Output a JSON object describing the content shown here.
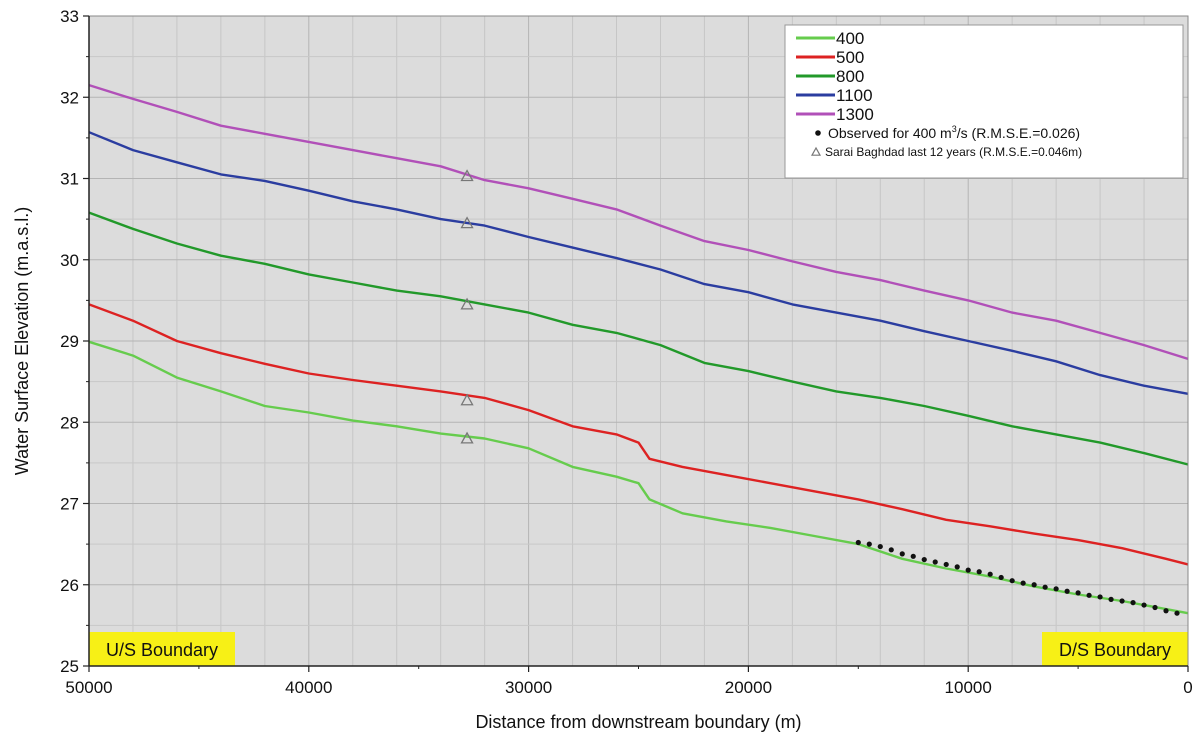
{
  "chart_data": {
    "type": "line",
    "title": "",
    "xlabel": "Distance from downstream boundary (m)",
    "ylabel": "Water Surface Elevation (m.a.s.l.)",
    "xlim": [
      50000,
      0
    ],
    "ylim": [
      25,
      33
    ],
    "x_ticks": [
      "50000",
      "40000",
      "30000",
      "20000",
      "10000",
      "0"
    ],
    "y_ticks": [
      "25",
      "26",
      "27",
      "28",
      "29",
      "30",
      "31",
      "32",
      "33"
    ],
    "grid": true,
    "legend_position": "top-right",
    "series": [
      {
        "name": "400",
        "color": "#66cc4d",
        "points": [
          [
            50000,
            28.99
          ],
          [
            48000,
            28.82
          ],
          [
            46000,
            28.55
          ],
          [
            44000,
            28.38
          ],
          [
            42000,
            28.2
          ],
          [
            40000,
            28.12
          ],
          [
            38000,
            28.02
          ],
          [
            36000,
            27.95
          ],
          [
            34000,
            27.86
          ],
          [
            32000,
            27.8
          ],
          [
            30000,
            27.68
          ],
          [
            28000,
            27.45
          ],
          [
            26000,
            27.33
          ],
          [
            25000,
            27.25
          ],
          [
            24500,
            27.05
          ],
          [
            23000,
            26.88
          ],
          [
            21000,
            26.78
          ],
          [
            19000,
            26.7
          ],
          [
            17000,
            26.6
          ],
          [
            15000,
            26.5
          ],
          [
            13000,
            26.32
          ],
          [
            11000,
            26.2
          ],
          [
            9000,
            26.1
          ],
          [
            7000,
            25.98
          ],
          [
            5000,
            25.88
          ],
          [
            3000,
            25.8
          ],
          [
            1000,
            25.7
          ],
          [
            0,
            25.65
          ]
        ]
      },
      {
        "name": "500",
        "color": "#dd2222",
        "points": [
          [
            50000,
            29.45
          ],
          [
            48000,
            29.25
          ],
          [
            46000,
            29.0
          ],
          [
            44000,
            28.85
          ],
          [
            42000,
            28.72
          ],
          [
            40000,
            28.6
          ],
          [
            38000,
            28.52
          ],
          [
            36000,
            28.45
          ],
          [
            34000,
            28.38
          ],
          [
            32000,
            28.3
          ],
          [
            30000,
            28.15
          ],
          [
            28000,
            27.95
          ],
          [
            26000,
            27.85
          ],
          [
            25000,
            27.75
          ],
          [
            24500,
            27.55
          ],
          [
            23000,
            27.45
          ],
          [
            21000,
            27.35
          ],
          [
            19000,
            27.25
          ],
          [
            17000,
            27.15
          ],
          [
            15000,
            27.05
          ],
          [
            13000,
            26.93
          ],
          [
            11000,
            26.8
          ],
          [
            9000,
            26.72
          ],
          [
            7000,
            26.63
          ],
          [
            5000,
            26.55
          ],
          [
            3000,
            26.45
          ],
          [
            1000,
            26.32
          ],
          [
            0,
            26.25
          ]
        ]
      },
      {
        "name": "800",
        "color": "#22992a",
        "points": [
          [
            50000,
            30.58
          ],
          [
            48000,
            30.38
          ],
          [
            46000,
            30.2
          ],
          [
            44000,
            30.05
          ],
          [
            42000,
            29.95
          ],
          [
            40000,
            29.82
          ],
          [
            38000,
            29.72
          ],
          [
            36000,
            29.62
          ],
          [
            34000,
            29.55
          ],
          [
            32000,
            29.45
          ],
          [
            30000,
            29.35
          ],
          [
            28000,
            29.2
          ],
          [
            26000,
            29.1
          ],
          [
            24000,
            28.95
          ],
          [
            22000,
            28.73
          ],
          [
            20000,
            28.63
          ],
          [
            18000,
            28.5
          ],
          [
            16000,
            28.38
          ],
          [
            14000,
            28.3
          ],
          [
            12000,
            28.2
          ],
          [
            10000,
            28.08
          ],
          [
            8000,
            27.95
          ],
          [
            6000,
            27.85
          ],
          [
            4000,
            27.75
          ],
          [
            2000,
            27.62
          ],
          [
            0,
            27.48
          ]
        ]
      },
      {
        "name": "1100",
        "color": "#2b3da0",
        "points": [
          [
            50000,
            31.57
          ],
          [
            48000,
            31.35
          ],
          [
            46000,
            31.2
          ],
          [
            44000,
            31.05
          ],
          [
            42000,
            30.97
          ],
          [
            40000,
            30.85
          ],
          [
            38000,
            30.72
          ],
          [
            36000,
            30.62
          ],
          [
            34000,
            30.5
          ],
          [
            32000,
            30.42
          ],
          [
            30000,
            30.28
          ],
          [
            28000,
            30.15
          ],
          [
            26000,
            30.02
          ],
          [
            24000,
            29.88
          ],
          [
            22000,
            29.7
          ],
          [
            20000,
            29.6
          ],
          [
            18000,
            29.45
          ],
          [
            16000,
            29.35
          ],
          [
            14000,
            29.25
          ],
          [
            12000,
            29.12
          ],
          [
            10000,
            29.0
          ],
          [
            8000,
            28.88
          ],
          [
            6000,
            28.75
          ],
          [
            4000,
            28.58
          ],
          [
            2000,
            28.45
          ],
          [
            0,
            28.35
          ]
        ]
      },
      {
        "name": "1300",
        "color": "#b150b8",
        "points": [
          [
            50000,
            32.15
          ],
          [
            48000,
            31.98
          ],
          [
            46000,
            31.82
          ],
          [
            44000,
            31.65
          ],
          [
            42000,
            31.55
          ],
          [
            40000,
            31.45
          ],
          [
            38000,
            31.35
          ],
          [
            36000,
            31.25
          ],
          [
            34000,
            31.15
          ],
          [
            32000,
            30.98
          ],
          [
            30000,
            30.88
          ],
          [
            28000,
            30.75
          ],
          [
            26000,
            30.62
          ],
          [
            24000,
            30.42
          ],
          [
            22000,
            30.23
          ],
          [
            20000,
            30.12
          ],
          [
            18000,
            29.98
          ],
          [
            16000,
            29.85
          ],
          [
            14000,
            29.75
          ],
          [
            12000,
            29.62
          ],
          [
            10000,
            29.5
          ],
          [
            8000,
            29.35
          ],
          [
            6000,
            29.25
          ],
          [
            4000,
            29.1
          ],
          [
            2000,
            28.95
          ],
          [
            0,
            28.78
          ]
        ]
      }
    ],
    "observed": {
      "name": "Observed for 400 m³/s (R.M.S.E.=0.026)",
      "color": "#111111",
      "points": [
        [
          15000,
          26.52
        ],
        [
          14500,
          26.5
        ],
        [
          14000,
          26.47
        ],
        [
          13500,
          26.43
        ],
        [
          13000,
          26.38
        ],
        [
          12500,
          26.35
        ],
        [
          12000,
          26.31
        ],
        [
          11500,
          26.28
        ],
        [
          11000,
          26.25
        ],
        [
          10500,
          26.22
        ],
        [
          10000,
          26.18
        ],
        [
          9500,
          26.16
        ],
        [
          9000,
          26.13
        ],
        [
          8500,
          26.09
        ],
        [
          8000,
          26.05
        ],
        [
          7500,
          26.02
        ],
        [
          7000,
          26.0
        ],
        [
          6500,
          25.97
        ],
        [
          6000,
          25.95
        ],
        [
          5500,
          25.92
        ],
        [
          5000,
          25.9
        ],
        [
          4500,
          25.87
        ],
        [
          4000,
          25.85
        ],
        [
          3500,
          25.82
        ],
        [
          3000,
          25.8
        ],
        [
          2500,
          25.78
        ],
        [
          2000,
          25.75
        ],
        [
          1500,
          25.72
        ],
        [
          1000,
          25.68
        ],
        [
          500,
          25.65
        ]
      ]
    },
    "sarai": {
      "name": "Sarai Baghdad last 12 years (R.M.S.E.=0.046m)",
      "color": "#777777",
      "points": [
        [
          32800,
          31.03
        ],
        [
          32800,
          30.45
        ],
        [
          32800,
          29.45
        ],
        [
          32800,
          28.27
        ],
        [
          32800,
          27.8
        ]
      ]
    },
    "legend": {
      "obs_prefix": "Observed for 400 m",
      "obs_sup": "3",
      "obs_suffix": "/s (R.M.S.E.=0.026)"
    },
    "annotations": [
      {
        "text": "U/S Boundary",
        "anchor": "bottom-left"
      },
      {
        "text": "D/S Boundary",
        "anchor": "bottom-right"
      }
    ]
  }
}
